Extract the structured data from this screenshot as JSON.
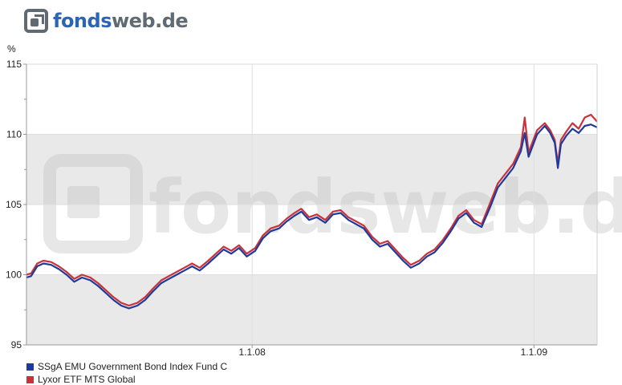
{
  "logo": {
    "part1": "fonds",
    "part2": "web.de"
  },
  "watermark": {
    "text": "fondsweb.de"
  },
  "chart_data": {
    "type": "line",
    "y_unit_label": "%",
    "ylim": [
      95,
      115
    ],
    "yticks": [
      95,
      100,
      105,
      110,
      115
    ],
    "x_tick_labels": [
      "1.1.08",
      "1.1.09"
    ],
    "xlim": [
      "2007-03-14",
      "2009-03-24"
    ],
    "grid": true,
    "legend_position": "bottom-left",
    "series": [
      {
        "name": "SSgA EMU Government Bond Index Fund C",
        "color": "#1f3a9a",
        "points": [
          [
            "2007-03-14",
            99.8
          ],
          [
            "2007-03-20",
            99.9
          ],
          [
            "2007-03-28",
            100.6
          ],
          [
            "2007-04-05",
            100.8
          ],
          [
            "2007-04-15",
            100.7
          ],
          [
            "2007-04-25",
            100.4
          ],
          [
            "2007-05-05",
            100.0
          ],
          [
            "2007-05-15",
            99.5
          ],
          [
            "2007-05-25",
            99.8
          ],
          [
            "2007-06-05",
            99.6
          ],
          [
            "2007-06-15",
            99.2
          ],
          [
            "2007-06-25",
            98.7
          ],
          [
            "2007-07-05",
            98.2
          ],
          [
            "2007-07-15",
            97.8
          ],
          [
            "2007-07-25",
            97.6
          ],
          [
            "2007-08-05",
            97.8
          ],
          [
            "2007-08-15",
            98.2
          ],
          [
            "2007-08-25",
            98.8
          ],
          [
            "2007-09-05",
            99.4
          ],
          [
            "2007-09-15",
            99.7
          ],
          [
            "2007-09-25",
            100.0
          ],
          [
            "2007-10-05",
            100.3
          ],
          [
            "2007-10-15",
            100.6
          ],
          [
            "2007-10-25",
            100.3
          ],
          [
            "2007-11-05",
            100.8
          ],
          [
            "2007-11-15",
            101.3
          ],
          [
            "2007-11-25",
            101.8
          ],
          [
            "2007-12-05",
            101.5
          ],
          [
            "2007-12-15",
            101.9
          ],
          [
            "2007-12-25",
            101.3
          ],
          [
            "2008-01-05",
            101.7
          ],
          [
            "2008-01-15",
            102.6
          ],
          [
            "2008-01-25",
            103.1
          ],
          [
            "2008-02-05",
            103.3
          ],
          [
            "2008-02-15",
            103.8
          ],
          [
            "2008-02-25",
            104.2
          ],
          [
            "2008-03-05",
            104.5
          ],
          [
            "2008-03-15",
            103.9
          ],
          [
            "2008-03-25",
            104.1
          ],
          [
            "2008-04-05",
            103.7
          ],
          [
            "2008-04-15",
            104.3
          ],
          [
            "2008-04-25",
            104.4
          ],
          [
            "2008-05-05",
            103.9
          ],
          [
            "2008-05-15",
            103.6
          ],
          [
            "2008-05-25",
            103.3
          ],
          [
            "2008-06-05",
            102.5
          ],
          [
            "2008-06-15",
            102.0
          ],
          [
            "2008-06-25",
            102.2
          ],
          [
            "2008-07-05",
            101.6
          ],
          [
            "2008-07-15",
            101.0
          ],
          [
            "2008-07-25",
            100.5
          ],
          [
            "2008-08-05",
            100.8
          ],
          [
            "2008-08-15",
            101.3
          ],
          [
            "2008-08-25",
            101.6
          ],
          [
            "2008-09-05",
            102.3
          ],
          [
            "2008-09-15",
            103.1
          ],
          [
            "2008-09-25",
            104.0
          ],
          [
            "2008-10-05",
            104.4
          ],
          [
            "2008-10-15",
            103.7
          ],
          [
            "2008-10-25",
            103.4
          ],
          [
            "2008-11-05",
            104.8
          ],
          [
            "2008-11-15",
            106.2
          ],
          [
            "2008-11-25",
            106.9
          ],
          [
            "2008-12-05",
            107.6
          ],
          [
            "2008-12-15",
            108.8
          ],
          [
            "2008-12-20",
            110.1
          ],
          [
            "2008-12-25",
            108.4
          ],
          [
            "2009-01-05",
            110.0
          ],
          [
            "2009-01-15",
            110.6
          ],
          [
            "2009-01-22",
            110.1
          ],
          [
            "2009-01-28",
            109.4
          ],
          [
            "2009-02-01",
            107.6
          ],
          [
            "2009-02-05",
            109.3
          ],
          [
            "2009-02-12",
            109.9
          ],
          [
            "2009-02-20",
            110.4
          ],
          [
            "2009-02-28",
            110.1
          ],
          [
            "2009-03-08",
            110.6
          ],
          [
            "2009-03-16",
            110.7
          ],
          [
            "2009-03-24",
            110.5
          ]
        ]
      },
      {
        "name": "Lyxor ETF MTS Global",
        "color": "#c8323a",
        "points": [
          [
            "2007-03-14",
            100.0
          ],
          [
            "2007-03-20",
            100.1
          ],
          [
            "2007-03-28",
            100.8
          ],
          [
            "2007-04-05",
            101.0
          ],
          [
            "2007-04-15",
            100.9
          ],
          [
            "2007-04-25",
            100.6
          ],
          [
            "2007-05-05",
            100.2
          ],
          [
            "2007-05-15",
            99.7
          ],
          [
            "2007-05-25",
            100.0
          ],
          [
            "2007-06-05",
            99.8
          ],
          [
            "2007-06-15",
            99.4
          ],
          [
            "2007-06-25",
            98.9
          ],
          [
            "2007-07-05",
            98.4
          ],
          [
            "2007-07-15",
            98.0
          ],
          [
            "2007-07-25",
            97.8
          ],
          [
            "2007-08-05",
            98.0
          ],
          [
            "2007-08-15",
            98.4
          ],
          [
            "2007-08-25",
            99.0
          ],
          [
            "2007-09-05",
            99.6
          ],
          [
            "2007-09-15",
            99.9
          ],
          [
            "2007-09-25",
            100.2
          ],
          [
            "2007-10-05",
            100.5
          ],
          [
            "2007-10-15",
            100.8
          ],
          [
            "2007-10-25",
            100.5
          ],
          [
            "2007-11-05",
            101.0
          ],
          [
            "2007-11-15",
            101.5
          ],
          [
            "2007-11-25",
            102.0
          ],
          [
            "2007-12-05",
            101.7
          ],
          [
            "2007-12-15",
            102.1
          ],
          [
            "2007-12-25",
            101.5
          ],
          [
            "2008-01-05",
            101.9
          ],
          [
            "2008-01-15",
            102.8
          ],
          [
            "2008-01-25",
            103.3
          ],
          [
            "2008-02-05",
            103.5
          ],
          [
            "2008-02-15",
            104.0
          ],
          [
            "2008-02-25",
            104.4
          ],
          [
            "2008-03-05",
            104.7
          ],
          [
            "2008-03-15",
            104.1
          ],
          [
            "2008-03-25",
            104.3
          ],
          [
            "2008-04-05",
            103.9
          ],
          [
            "2008-04-15",
            104.5
          ],
          [
            "2008-04-25",
            104.6
          ],
          [
            "2008-05-05",
            104.1
          ],
          [
            "2008-05-15",
            103.8
          ],
          [
            "2008-05-25",
            103.5
          ],
          [
            "2008-06-05",
            102.7
          ],
          [
            "2008-06-15",
            102.2
          ],
          [
            "2008-06-25",
            102.4
          ],
          [
            "2008-07-05",
            101.8
          ],
          [
            "2008-07-15",
            101.2
          ],
          [
            "2008-07-25",
            100.7
          ],
          [
            "2008-08-05",
            101.0
          ],
          [
            "2008-08-15",
            101.5
          ],
          [
            "2008-08-25",
            101.8
          ],
          [
            "2008-09-05",
            102.5
          ],
          [
            "2008-09-15",
            103.3
          ],
          [
            "2008-09-25",
            104.2
          ],
          [
            "2008-10-05",
            104.6
          ],
          [
            "2008-10-15",
            103.9
          ],
          [
            "2008-10-25",
            103.6
          ],
          [
            "2008-11-05",
            105.1
          ],
          [
            "2008-11-15",
            106.5
          ],
          [
            "2008-11-25",
            107.2
          ],
          [
            "2008-12-05",
            107.9
          ],
          [
            "2008-12-15",
            109.1
          ],
          [
            "2008-12-20",
            111.2
          ],
          [
            "2008-12-25",
            108.7
          ],
          [
            "2009-01-05",
            110.3
          ],
          [
            "2009-01-15",
            110.8
          ],
          [
            "2009-01-22",
            110.3
          ],
          [
            "2009-01-28",
            109.6
          ],
          [
            "2009-02-01",
            107.9
          ],
          [
            "2009-02-05",
            109.6
          ],
          [
            "2009-02-12",
            110.2
          ],
          [
            "2009-02-20",
            110.8
          ],
          [
            "2009-02-28",
            110.4
          ],
          [
            "2009-03-08",
            111.2
          ],
          [
            "2009-03-16",
            111.4
          ],
          [
            "2009-03-24",
            110.9
          ]
        ]
      }
    ]
  }
}
